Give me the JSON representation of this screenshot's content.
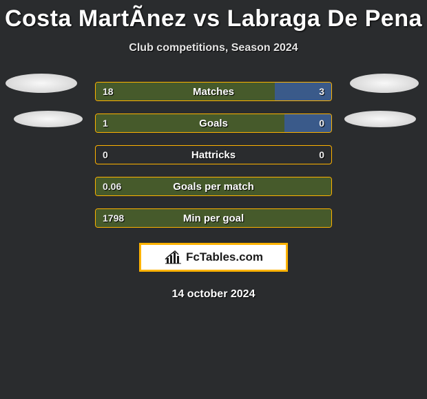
{
  "title": "Costa MartÃ­nez vs Labraga De Pena",
  "subtitle": "Club competitions, Season 2024",
  "date": "14 october 2024",
  "brand": "FcTables.com",
  "colors": {
    "background": "#2a2c2e",
    "bar_border": "#ffb300",
    "left_fill": "#465a2b",
    "right_fill": "#3a5a8a",
    "text": "#ffffff"
  },
  "layout": {
    "bar_track_width": 344,
    "bar_track_height": 28
  },
  "stats": [
    {
      "label": "Matches",
      "left_val": "18",
      "right_val": "3",
      "left_pct": 76,
      "right_pct": 24
    },
    {
      "label": "Goals",
      "left_val": "1",
      "right_val": "0",
      "left_pct": 80,
      "right_pct": 20
    },
    {
      "label": "Hattricks",
      "left_val": "0",
      "right_val": "0",
      "left_pct": 0,
      "right_pct": 0
    },
    {
      "label": "Goals per match",
      "left_val": "0.06",
      "right_val": "",
      "left_pct": 100,
      "right_pct": 0
    },
    {
      "label": "Min per goal",
      "left_val": "1798",
      "right_val": "",
      "left_pct": 100,
      "right_pct": 0
    }
  ]
}
